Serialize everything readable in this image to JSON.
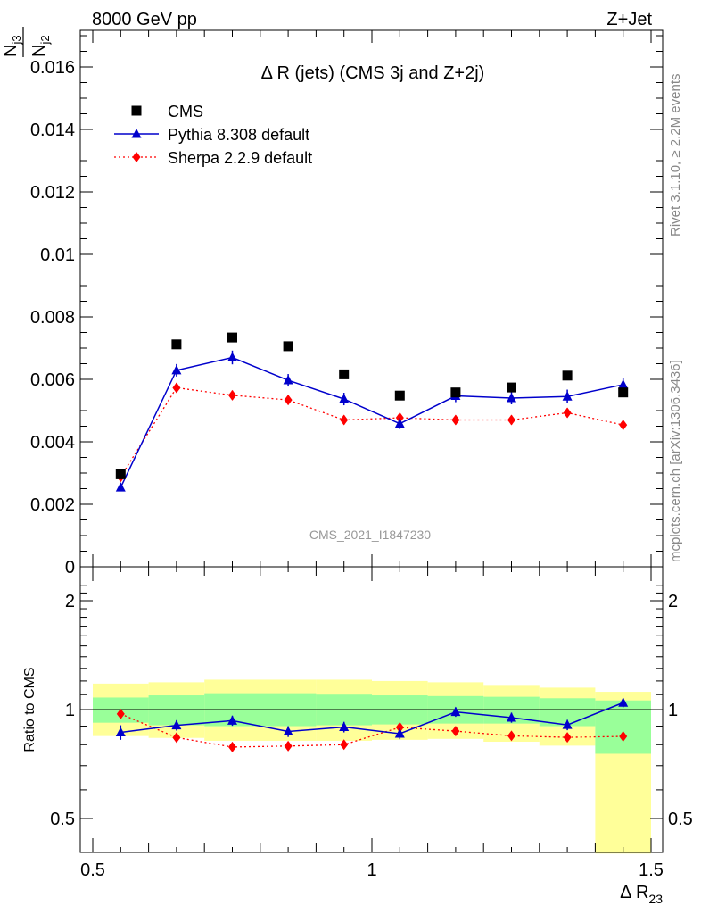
{
  "header": {
    "left": "8000 GeV pp",
    "right": "Z+Jet"
  },
  "side_labels": {
    "rivet": "Rivet 3.1.10, ≥ 2.2M events",
    "mcplots": "mcplots.cern.ch [arXiv:1306.3436]"
  },
  "watermark": "CMS_2021_I1847230",
  "chart_data": [
    {
      "type": "scatter",
      "title": "Δ R (jets) (CMS 3j and Z+2j)",
      "ylabel_num": "N_j3",
      "ylabel_den": "N_j2",
      "ylim": [
        0,
        0.0172
      ],
      "xlim": [
        0.5,
        1.5
      ],
      "y_ticks": [
        0,
        0.002,
        0.004,
        0.006,
        0.008,
        0.01,
        0.012,
        0.014,
        0.016
      ],
      "y_tick_labels": [
        "0",
        "0.002",
        "0.004",
        "0.006",
        "0.008",
        "0.01",
        "0.012",
        "0.014",
        "0.016"
      ],
      "legend_position": "top-left",
      "x": [
        0.55,
        0.65,
        0.75,
        0.85,
        0.95,
        1.05,
        1.15,
        1.25,
        1.35,
        1.45
      ],
      "series": [
        {
          "name": "CMS",
          "color": "#000000",
          "marker": "square",
          "values": [
            0.00296,
            0.00712,
            0.00734,
            0.00706,
            0.00616,
            0.00548,
            0.00558,
            0.00574,
            0.00612,
            0.00558
          ]
        },
        {
          "name": "Pythia 8.308 default",
          "color": "#0000cc",
          "marker": "triangle",
          "line": "solid",
          "values": [
            0.00254,
            0.00629,
            0.0067,
            0.00597,
            0.00537,
            0.00458,
            0.00547,
            0.0054,
            0.00545,
            0.00583
          ],
          "errors": [
            0.0001,
            0.0002,
            0.00022,
            0.0002,
            0.0002,
            0.00018,
            0.0002,
            0.0002,
            0.00022,
            0.00022
          ]
        },
        {
          "name": "Sherpa 2.2.9 default",
          "color": "#ff0000",
          "marker": "diamond",
          "line": "dotted",
          "values": [
            0.00288,
            0.00573,
            0.00549,
            0.00534,
            0.0047,
            0.00477,
            0.0047,
            0.0047,
            0.00493,
            0.00454
          ],
          "errors": [
            0.0001,
            0.00015,
            0.00015,
            0.00015,
            0.00015,
            0.00015,
            0.00015,
            0.00015,
            0.00015,
            0.00015
          ]
        }
      ]
    },
    {
      "type": "scatter",
      "ylabel": "Ratio to CMS",
      "xlabel": "Δ R",
      "xlabel_sub": "23",
      "ylim": [
        0.38,
        2.3
      ],
      "y_scale": "log",
      "xlim": [
        0.5,
        1.5
      ],
      "y_tick_labels": [
        "0.5",
        "1",
        "2"
      ],
      "y_ticks": [
        0.5,
        1,
        2
      ],
      "x_ticks": [
        0.5,
        1,
        1.5
      ],
      "x_tick_labels": [
        "0.5",
        "1",
        "1.5"
      ],
      "x": [
        0.55,
        0.65,
        0.75,
        0.85,
        0.95,
        1.05,
        1.15,
        1.25,
        1.35,
        1.45
      ],
      "bands": {
        "yellow_color": "#ffff99",
        "green_color": "#99ff99",
        "yellow_lo": [
          0.845,
          0.835,
          0.82,
          0.82,
          0.82,
          0.825,
          0.83,
          0.815,
          0.795,
          0.4
        ],
        "yellow_hi": [
          1.18,
          1.19,
          1.21,
          1.21,
          1.21,
          1.2,
          1.19,
          1.17,
          1.15,
          1.12
        ],
        "green_lo": [
          0.92,
          0.905,
          0.9,
          0.9,
          0.905,
          0.91,
          0.915,
          0.915,
          0.9,
          0.755
        ],
        "green_hi": [
          1.08,
          1.095,
          1.11,
          1.11,
          1.1,
          1.095,
          1.09,
          1.085,
          1.075,
          1.06
        ]
      },
      "series": [
        {
          "name": "Pythia 8.308 default",
          "color": "#0000cc",
          "values": [
            0.865,
            0.905,
            0.932,
            0.87,
            0.895,
            0.858,
            0.985,
            0.95,
            0.907,
            1.045
          ],
          "errors": [
            0.04,
            0.03,
            0.03,
            0.03,
            0.03,
            0.03,
            0.03,
            0.03,
            0.03,
            0.03
          ]
        },
        {
          "name": "Sherpa 2.2.9 default",
          "color": "#ff0000",
          "values": [
            0.973,
            0.837,
            0.788,
            0.793,
            0.8,
            0.893,
            0.872,
            0.846,
            0.838,
            0.843
          ],
          "errors": [
            0.02,
            0.02,
            0.02,
            0.02,
            0.02,
            0.02,
            0.02,
            0.02,
            0.02,
            0.02
          ]
        }
      ]
    }
  ]
}
